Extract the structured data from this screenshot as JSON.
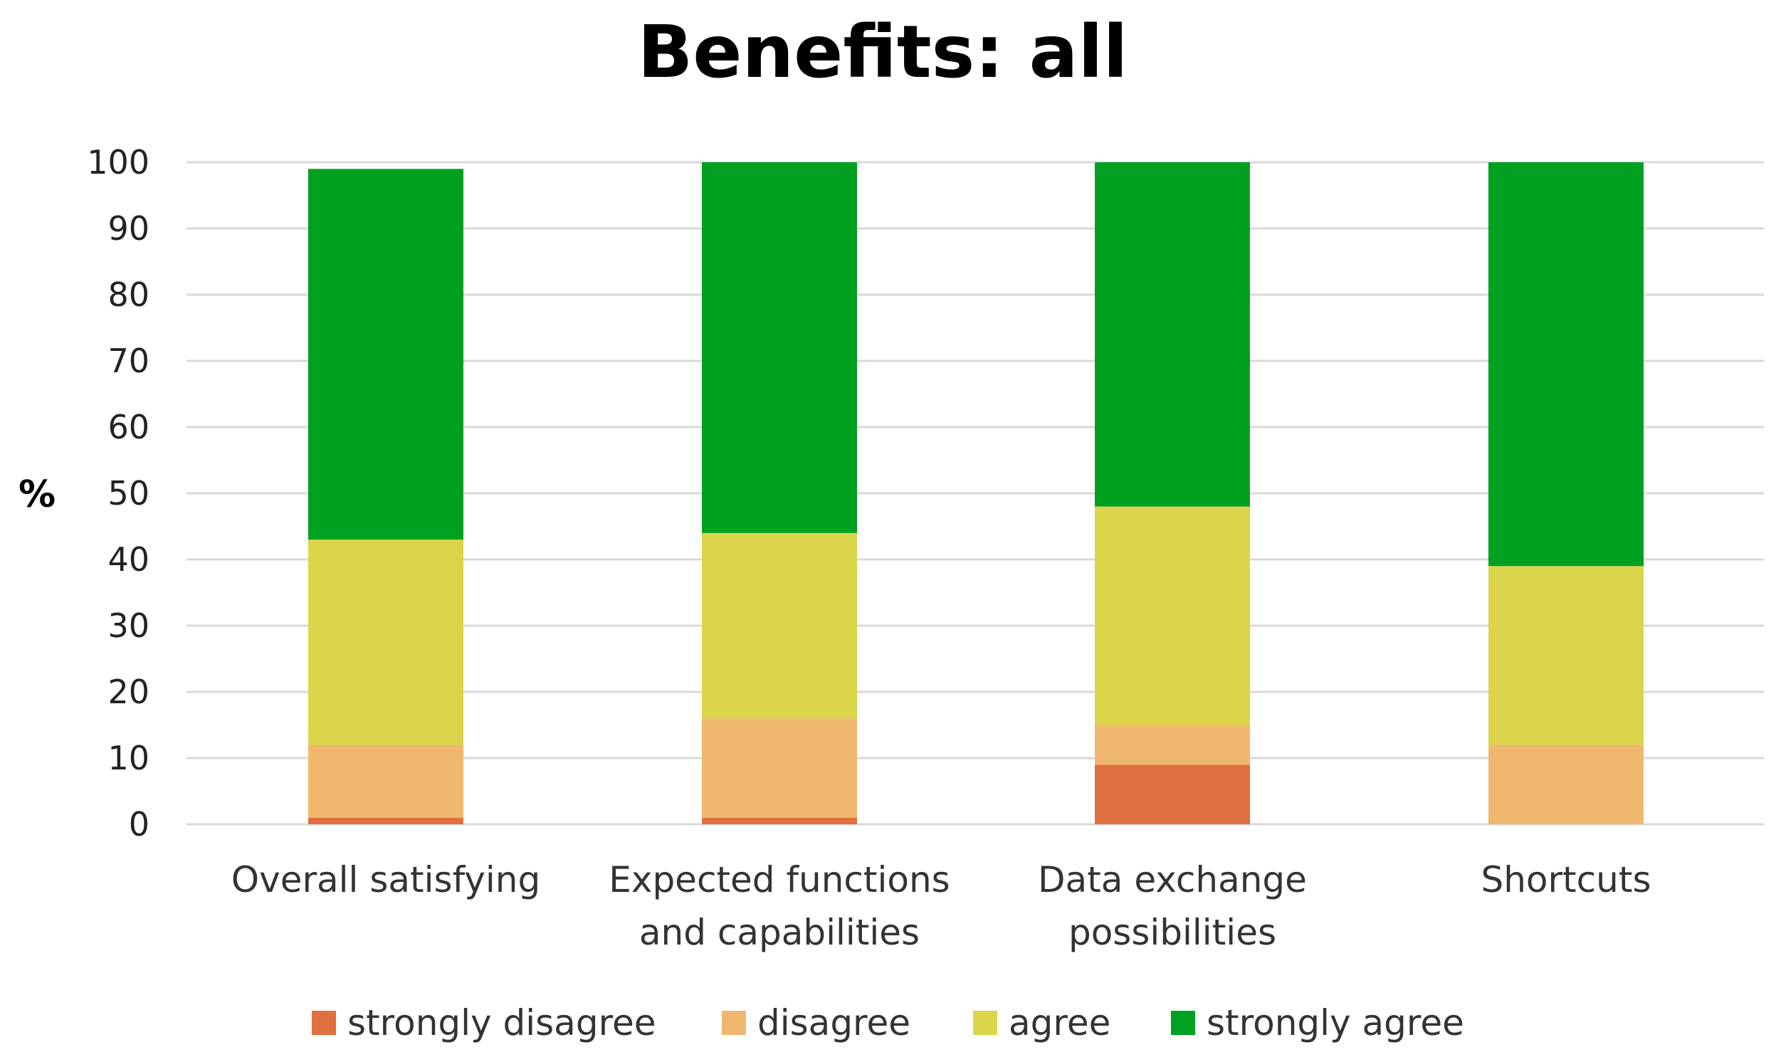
{
  "chart_data": {
    "type": "bar",
    "stacked": true,
    "title": "Benefits: all",
    "xlabel": "",
    "ylabel": "%",
    "ylim": [
      0,
      100
    ],
    "yticks": [
      0,
      10,
      20,
      30,
      40,
      50,
      60,
      70,
      80,
      90,
      100
    ],
    "grid": true,
    "legend_position": "bottom",
    "categories": [
      [
        "Overall satisfying"
      ],
      [
        "Expected functions",
        "and capabilities"
      ],
      [
        "Data exchange",
        "possibilities"
      ],
      [
        "Shortcuts"
      ]
    ],
    "series": [
      {
        "name": "strongly disagree",
        "color": "#e07040",
        "values": [
          1,
          1,
          9,
          0
        ]
      },
      {
        "name": "disagree",
        "color": "#f0b86e",
        "values": [
          11,
          15,
          6,
          12
        ]
      },
      {
        "name": "agree",
        "color": "#dad54a",
        "values": [
          31,
          28,
          33,
          27
        ]
      },
      {
        "name": "strongly agree",
        "color": "#00a020",
        "values": [
          56,
          56,
          52,
          61
        ]
      }
    ]
  }
}
